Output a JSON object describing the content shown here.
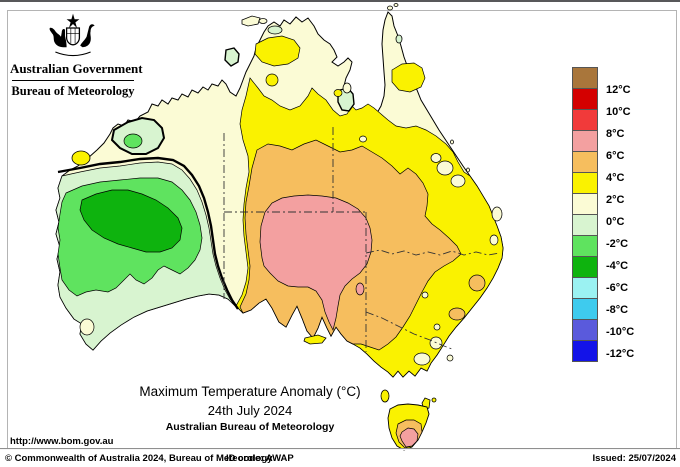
{
  "header": {
    "government": "Australian Government",
    "bureau": "Bureau of Meteorology"
  },
  "title_block": {
    "title": "Maximum Temperature Anomaly (°C)",
    "date": "24th July 2024",
    "source": "Australian Bureau of Meteorology"
  },
  "legend": {
    "labels": [
      "12°C",
      "10°C",
      "8°C",
      "6°C",
      "4°C",
      "2°C",
      "0°C",
      "-2°C",
      "-4°C",
      "-6°C",
      "-8°C",
      "-10°C",
      "-12°C"
    ],
    "swatch_colors": [
      "#A9763B",
      "#D40000",
      "#F13A3A",
      "#F3A0A0",
      "#F6BE5E",
      "#FAF200",
      "#FBFBD5",
      "#D8F4D0",
      "#5FE35F",
      "#0EB30E",
      "#9BF2F2",
      "#3ECBEE",
      "#5A5ADC",
      "#1313E8"
    ]
  },
  "colors": {
    "ocean": "#FFFFFF",
    "band_0_2": "#FBFBD5",
    "band_2_4": "#FAF200",
    "band_4_6": "#F6BE5E",
    "band_6_8": "#F3A0A0",
    "band_m2_0": "#D8F4D0",
    "band_m4_m2": "#5FE35F",
    "band_m6_m4": "#0EB30E",
    "coast_line": "#000000",
    "state_border": "#333333"
  },
  "map_regions": [
    {
      "area": "central western australia",
      "anomaly": "-6 to -4°C"
    },
    {
      "area": "southwest western australia",
      "anomaly": "-2 to 0°C"
    },
    {
      "area": "central australia / northern south australia",
      "anomaly": "6 to 8°C"
    },
    {
      "area": "interior belt around core",
      "anomaly": "4 to 6°C"
    },
    {
      "area": "eastern australia and top end interior",
      "anomaly": "2 to 4°C"
    },
    {
      "area": "northern coasts and northeast coast",
      "anomaly": "0 to 2°C"
    },
    {
      "area": "southern tasmania",
      "anomaly": "6 to 8°C"
    }
  ],
  "footer": {
    "url": "http://www.bom.gov.au",
    "copyright": "© Commonwealth of Australia 2024, Bureau of Meteorology",
    "id_code": "ID code: AWAP",
    "issued": "Issued: 25/07/2024"
  }
}
